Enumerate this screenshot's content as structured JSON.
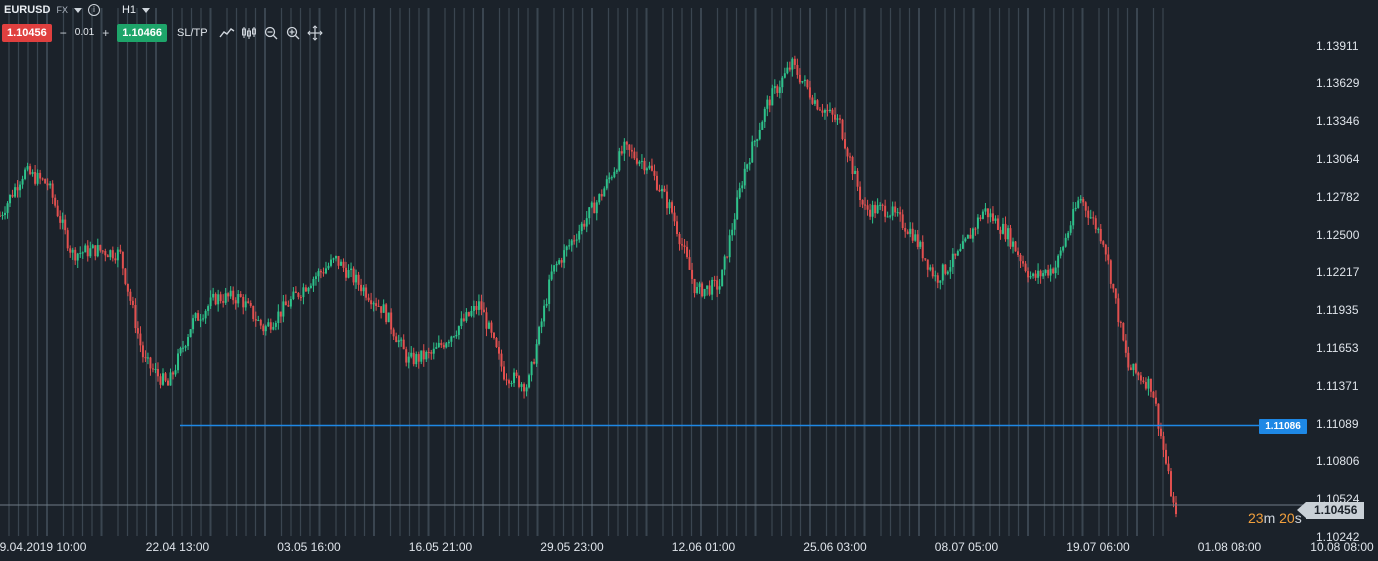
{
  "toolbar": {
    "symbol": "EURUSD",
    "market": "FX",
    "timeframe": "H1",
    "sell_price": "1.10456",
    "volume": "0.01",
    "minus": "−",
    "plus": "+",
    "buy_price": "1.10466",
    "sltp_label": "SL/TP",
    "icons": [
      "chart-type-icon",
      "indicators-icon",
      "zoom-out-icon",
      "zoom-in-icon",
      "crosshair-icon"
    ]
  },
  "colors": {
    "background": "#1b222a",
    "up": "#2ec28b",
    "down": "#e2504f",
    "sessions": "#3a4550",
    "hline": "#1e88e5",
    "countdown": "#f2a03d"
  },
  "price_axis": {
    "labels": [
      "1.13911",
      "1.13629",
      "1.13346",
      "1.13064",
      "1.12782",
      "1.12500",
      "1.12217",
      "1.11935",
      "1.11653",
      "1.11371",
      "1.11089",
      "1.10806",
      "1.10524",
      "1.10242"
    ]
  },
  "time_axis": {
    "labels": [
      "9.04.2019 10:00",
      "22.04 13:00",
      "03.05 16:00",
      "16.05 21:00",
      "29.05 23:00",
      "12.06 01:00",
      "25.06 03:00",
      "08.07 05:00",
      "19.07 06:00",
      "01.08 08:00",
      "10.08 08:00"
    ]
  },
  "horizontal_line": {
    "price": 1.11086,
    "label": "1.11086"
  },
  "current_price": {
    "value": 1.10456,
    "label": "1.10456"
  },
  "countdown": {
    "minutes": "23",
    "m_unit": "m",
    "seconds": "20",
    "s_unit": "s"
  },
  "chart_data": {
    "type": "line",
    "title": "",
    "xlabel": "",
    "ylabel": "",
    "ylim": [
      1.1021,
      1.141
    ],
    "x": [
      "2019-04-09",
      "2019-04-12",
      "2019-04-15",
      "2019-04-17",
      "2019-04-19",
      "2019-04-22",
      "2019-04-24",
      "2019-04-26",
      "2019-04-29",
      "2019-05-01",
      "2019-05-03",
      "2019-05-06",
      "2019-05-08",
      "2019-05-10",
      "2019-05-13",
      "2019-05-15",
      "2019-05-16",
      "2019-05-20",
      "2019-05-22",
      "2019-05-24",
      "2019-05-27",
      "2019-05-29",
      "2019-05-31",
      "2019-06-03",
      "2019-06-05",
      "2019-06-07",
      "2019-06-10",
      "2019-06-12",
      "2019-06-14",
      "2019-06-17",
      "2019-06-19",
      "2019-06-21",
      "2019-06-24",
      "2019-06-25",
      "2019-06-27",
      "2019-06-30",
      "2019-07-02",
      "2019-07-04",
      "2019-07-08",
      "2019-07-10",
      "2019-07-12",
      "2019-07-15",
      "2019-07-17",
      "2019-07-19",
      "2019-07-22",
      "2019-07-24",
      "2019-07-26",
      "2019-07-29",
      "2019-07-31",
      "2019-08-01"
    ],
    "series": [
      {
        "values": [
          1.1275,
          1.131,
          1.13,
          1.1245,
          1.1248,
          1.1245,
          1.116,
          1.114,
          1.119,
          1.121,
          1.121,
          1.1185,
          1.1205,
          1.1225,
          1.124,
          1.122,
          1.12,
          1.116,
          1.1165,
          1.1185,
          1.1205,
          1.115,
          1.114,
          1.123,
          1.126,
          1.129,
          1.1328,
          1.1315,
          1.1278,
          1.1215,
          1.122,
          1.131,
          1.1365,
          1.1395,
          1.1365,
          1.1348,
          1.128,
          1.128,
          1.1262,
          1.1225,
          1.1245,
          1.128,
          1.126,
          1.1225,
          1.1235,
          1.129,
          1.1255,
          1.1155,
          1.114,
          1.1034
        ]
      }
    ]
  }
}
